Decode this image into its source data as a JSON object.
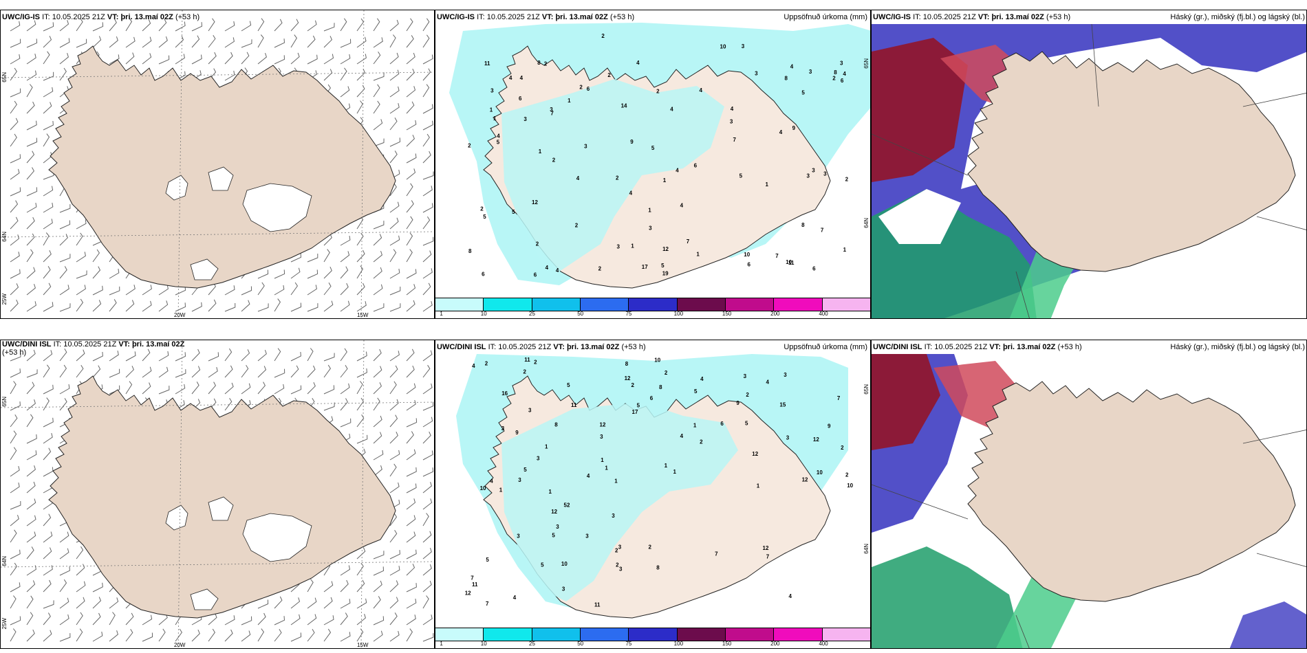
{
  "colors": {
    "land": "#e8d6c7",
    "land_light": "#f6e9df",
    "precip": "#b8f6f6",
    "cloud_high": "#8c1a38",
    "cloud_high_alt": "#d04a5c",
    "cloud_mid": "#1e9e6a",
    "cloud_mid_light": "#4ccc8c",
    "cloud_low": "#5250c8",
    "legend": [
      "#c8fbfb",
      "#10e8ec",
      "#10c0ec",
      "#2c6cf0",
      "#2c2cc8",
      "#6c0c4c",
      "#c00c8c",
      "#f00cbc",
      "#f6b4f0"
    ]
  },
  "panels": [
    {
      "header": {
        "model": "UWC/IG-IS",
        "it_label": "IT:",
        "it_value": "10.05.2025 21Z",
        "vt_label": "VT:",
        "vt_value": "þri. 13.maí 02Z",
        "lead": "(+53 h)"
      },
      "lat_labels": [
        "65N",
        "64N",
        "25W"
      ],
      "lon_labels": [
        "20W",
        "15W"
      ]
    },
    {
      "header": {
        "model": "UWC/IG-IS",
        "it_label": "IT:",
        "it_value": "10.05.2025 21Z",
        "vt_label": "VT:",
        "vt_value": "þri. 13.maí 02Z",
        "lead": "(+53 h)"
      },
      "title": "Uppsöfnuð úrkoma (mm)",
      "lat_labels": [
        "65N",
        "64N"
      ],
      "legend_ticks": [
        "1",
        "10",
        "25",
        "50",
        "75",
        "100",
        "150",
        "200",
        "400"
      ],
      "numbers": [
        "19",
        "17",
        "8",
        "5",
        "5",
        "7",
        "4",
        "6",
        "4",
        "4",
        "1",
        "2",
        "4",
        "4",
        "6",
        "9",
        "8",
        "6",
        "4",
        "11",
        "4",
        "2",
        "2",
        "3",
        "2",
        "4",
        "5",
        "3",
        "14",
        "6",
        "3",
        "7",
        "10",
        "5",
        "8",
        "4",
        "4",
        "3",
        "4",
        "3",
        "7",
        "2",
        "1",
        "3",
        "5",
        "8",
        "2",
        "3",
        "2",
        "6",
        "6",
        "4",
        "3",
        "2",
        "6",
        "1",
        "9",
        "8",
        "3",
        "1",
        "7",
        "2",
        "12",
        "12",
        "10",
        "5",
        "3",
        "4",
        "3",
        "4",
        "2",
        "6",
        "3",
        "1",
        "4",
        "10",
        "2",
        "2",
        "2",
        "7",
        "4",
        "2",
        "5",
        "1",
        "3",
        "11",
        "3",
        "1",
        "1",
        "1",
        "1"
      ]
    },
    {
      "header": {
        "model": "UWC/IG-IS",
        "it_label": "IT:",
        "it_value": "10.05.2025 21Z",
        "vt_label": "VT:",
        "vt_value": "þri. 13.maí 02Z",
        "lead": "(+53 h)"
      },
      "title": "Háský (gr.), miðský (fj.bl.) og lágský (bl.)"
    },
    {
      "header": {
        "model": "UWC/DINI ISL",
        "it_label": "IT:",
        "it_value": "10.05.2025 21Z",
        "vt_label": "VT:",
        "vt_value": "þri. 13.maí 02Z",
        "lead": "(+53 h)"
      },
      "lat_labels": [
        "65N",
        "64N",
        "25W"
      ],
      "lon_labels": [
        "20W",
        "15W"
      ]
    },
    {
      "header": {
        "model": "UWC/DINI ISL",
        "it_label": "IT:",
        "it_value": "10.05.2025 21Z",
        "vt_label": "VT:",
        "vt_value": "þri. 13.maí 02Z",
        "lead": "(+53 h)"
      },
      "title": "Uppsöfnuð úrkoma (mm)",
      "lat_labels": [
        "65N",
        "64N"
      ],
      "legend_ticks": [
        "1",
        "10",
        "25",
        "50",
        "75",
        "100",
        "150",
        "200",
        "400"
      ],
      "numbers": [
        "1",
        "8",
        "3",
        "15",
        "16",
        "2",
        "2",
        "8",
        "9",
        "12",
        "10",
        "7",
        "17",
        "6",
        "4",
        "3",
        "5",
        "9",
        "9",
        "10",
        "12",
        "7",
        "4",
        "8",
        "3",
        "5",
        "3",
        "11",
        "10",
        "12",
        "8",
        "12",
        "5",
        "10",
        "7",
        "3",
        "11",
        "2",
        "2",
        "7",
        "3",
        "2",
        "6",
        "3",
        "2",
        "3",
        "3",
        "3",
        "4",
        "3",
        "1",
        "3",
        "2",
        "5",
        "1",
        "2",
        "5",
        "5",
        "11",
        "1",
        "1",
        "4",
        "12",
        "11",
        "2",
        "4",
        "3",
        "10",
        "5",
        "2",
        "7",
        "4",
        "12",
        "3",
        "5",
        "12",
        "4",
        "3",
        "1",
        "1",
        "2",
        "2",
        "1",
        "1",
        "1",
        "4",
        "2",
        "12",
        "5"
      ]
    },
    {
      "header": {
        "model": "UWC/DINI ISL",
        "it_label": "IT:",
        "it_value": "10.05.2025 21Z",
        "vt_label": "VT:",
        "vt_value": "þri. 13.maí 02Z",
        "lead": "(+53 h)"
      },
      "title": "Háský (gr.), miðský (fj.bl.) og lágský (bl.)"
    }
  ]
}
